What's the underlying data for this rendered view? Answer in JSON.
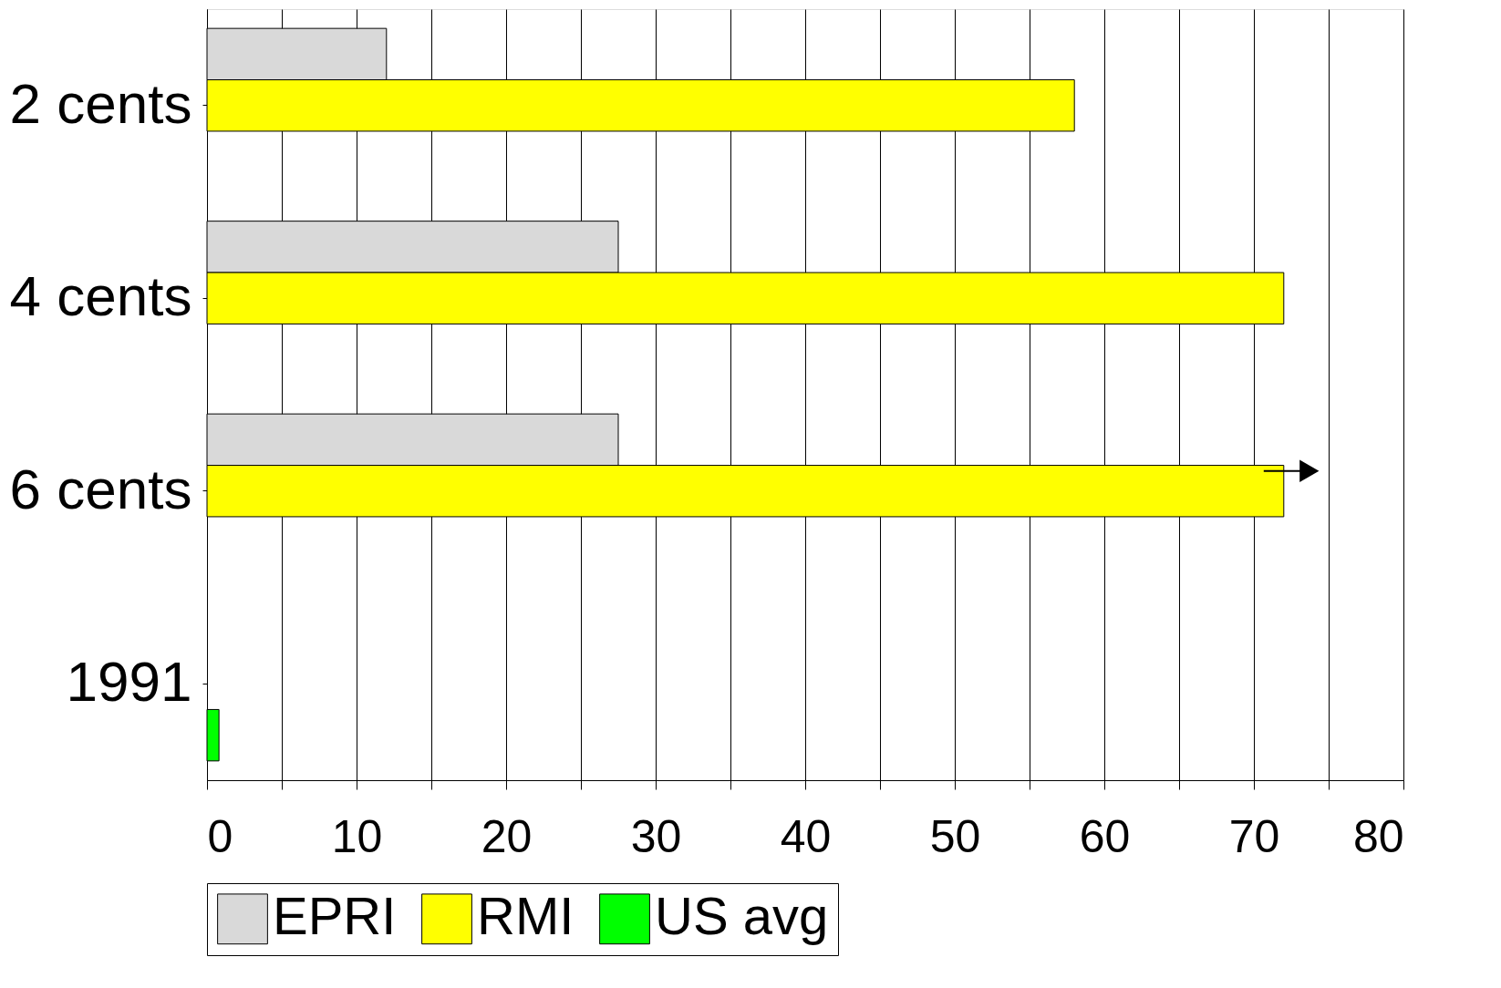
{
  "chart_data": {
    "type": "bar",
    "orientation": "horizontal",
    "categories": [
      "2 cents",
      "4 cents",
      "6 cents",
      "1991"
    ],
    "series": [
      {
        "name": "EPRI",
        "color": "#d9d9d9",
        "values": [
          12,
          27.5,
          27.5,
          null
        ]
      },
      {
        "name": "RMI",
        "color": "#ffff00",
        "values": [
          58,
          72,
          72,
          null
        ]
      },
      {
        "name": "US avg",
        "color": "#00ff00",
        "values": [
          null,
          null,
          null,
          0.8
        ]
      }
    ],
    "xlim": [
      0,
      80
    ],
    "xticks": [
      0,
      {
        "value": 5,
        "label": null
      },
      10,
      {
        "value": 15,
        "label": null
      },
      20,
      {
        "value": 25,
        "label": null
      },
      30,
      {
        "value": 35,
        "label": null
      },
      40,
      {
        "value": 45,
        "label": null
      },
      50,
      {
        "value": 55,
        "label": null
      },
      60,
      {
        "value": 65,
        "label": null
      },
      70,
      {
        "value": 75,
        "label": null
      },
      80
    ],
    "grid": "x",
    "legend": "bottom"
  }
}
